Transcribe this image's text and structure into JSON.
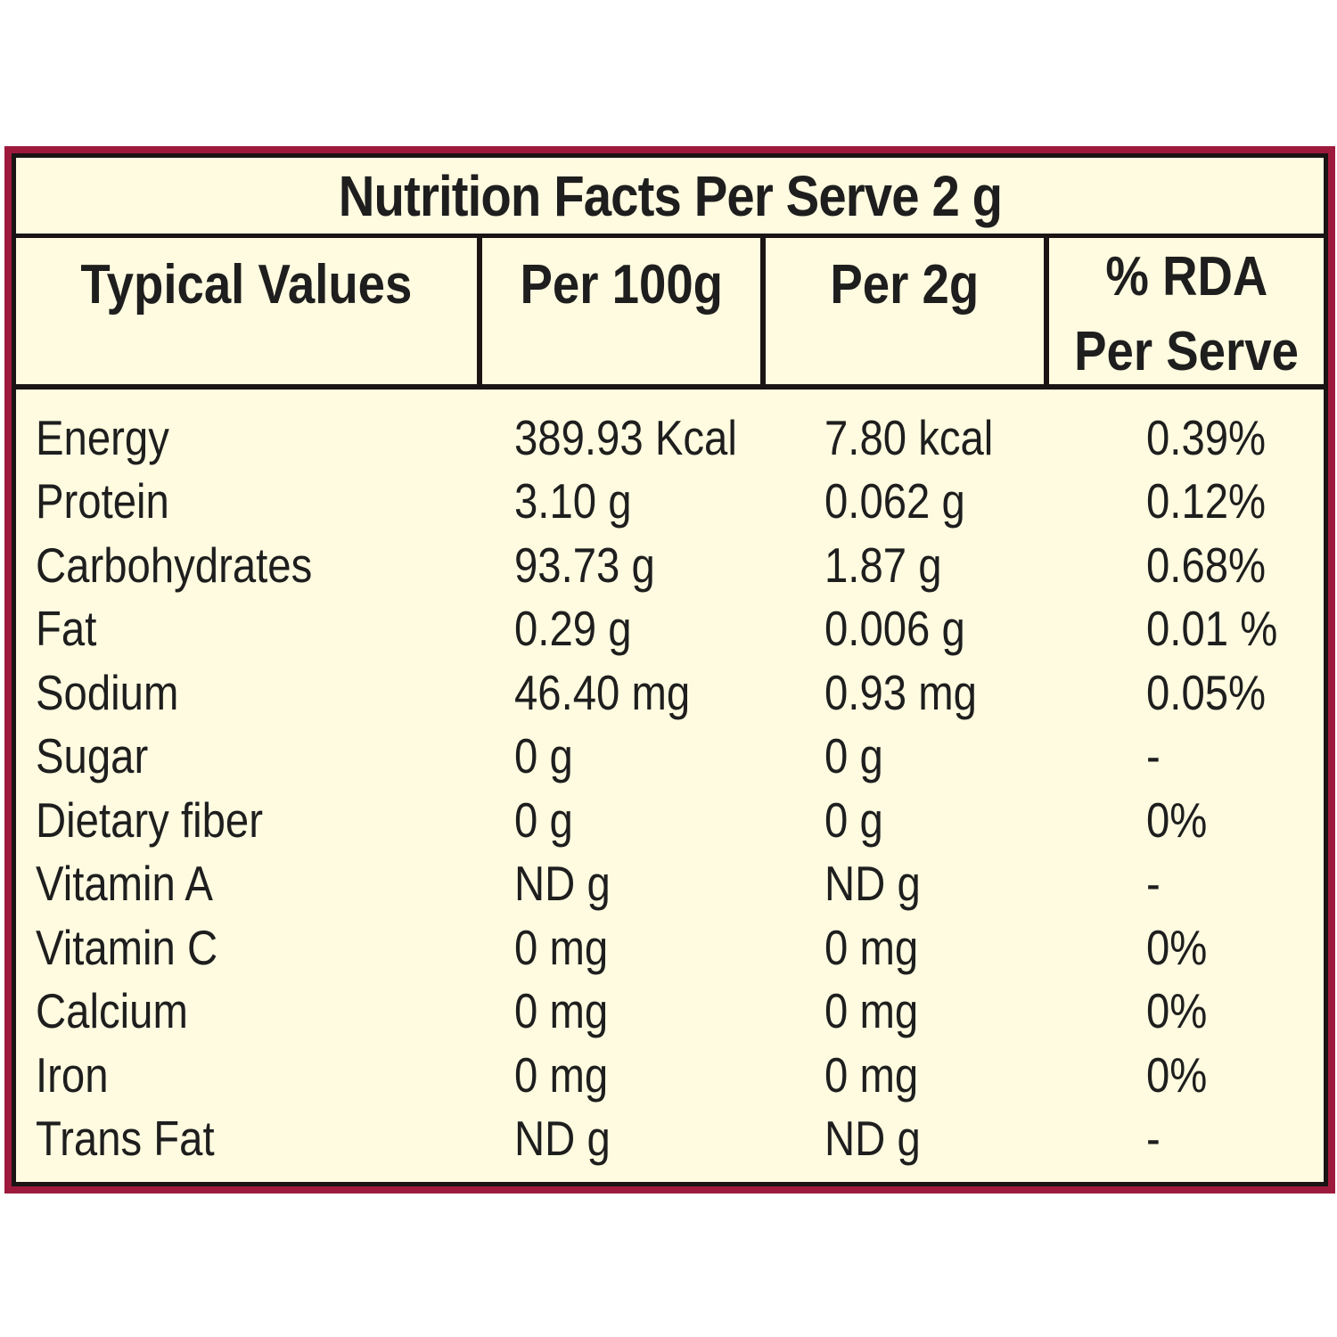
{
  "title": "Nutrition Facts Per Serve 2 g",
  "headers": {
    "typical_values": "Typical Values",
    "per_100g": "Per 100g",
    "per_2g": "Per 2g",
    "rda_line1": "% RDA",
    "rda_line2": "Per Serve"
  },
  "rows": [
    {
      "name": "Energy",
      "per_100g": "389.93 Kcal",
      "per_2g": "7.80 kcal",
      "rda": "0.39%"
    },
    {
      "name": "Protein",
      "per_100g": "3.10 g",
      "per_2g": "0.062 g",
      "rda": "0.12%"
    },
    {
      "name": "Carbohydrates",
      "per_100g": "93.73 g",
      "per_2g": "1.87 g",
      "rda": "0.68%"
    },
    {
      "name": "Fat",
      "per_100g": "0.29 g",
      "per_2g": "0.006 g",
      "rda": "0.01 %"
    },
    {
      "name": "Sodium",
      "per_100g": "46.40 mg",
      "per_2g": "0.93 mg",
      "rda": "0.05%"
    },
    {
      "name": "Sugar",
      "per_100g": "0 g",
      "per_2g": "0 g",
      "rda": "-"
    },
    {
      "name": "Dietary fiber",
      "per_100g": "0 g",
      "per_2g": "0 g",
      "rda": "0%"
    },
    {
      "name": "Vitamin A",
      "per_100g": "ND g",
      "per_2g": "ND g",
      "rda": "-"
    },
    {
      "name": "Vitamin C",
      "per_100g": "0 mg",
      "per_2g": "0 mg",
      "rda": "0%"
    },
    {
      "name": "Calcium",
      "per_100g": "0 mg",
      "per_2g": "0 mg",
      "rda": "0%"
    },
    {
      "name": "Iron",
      "per_100g": "0 mg",
      "per_2g": "0 mg",
      "rda": "0%"
    },
    {
      "name": "Trans Fat",
      "per_100g": "ND g",
      "per_2g": "ND g",
      "rda": "-"
    }
  ],
  "colors": {
    "border_outer": "#9e1a3c",
    "background": "#fffbe0",
    "rule": "#1a1414",
    "text": "#1e1e1e"
  }
}
